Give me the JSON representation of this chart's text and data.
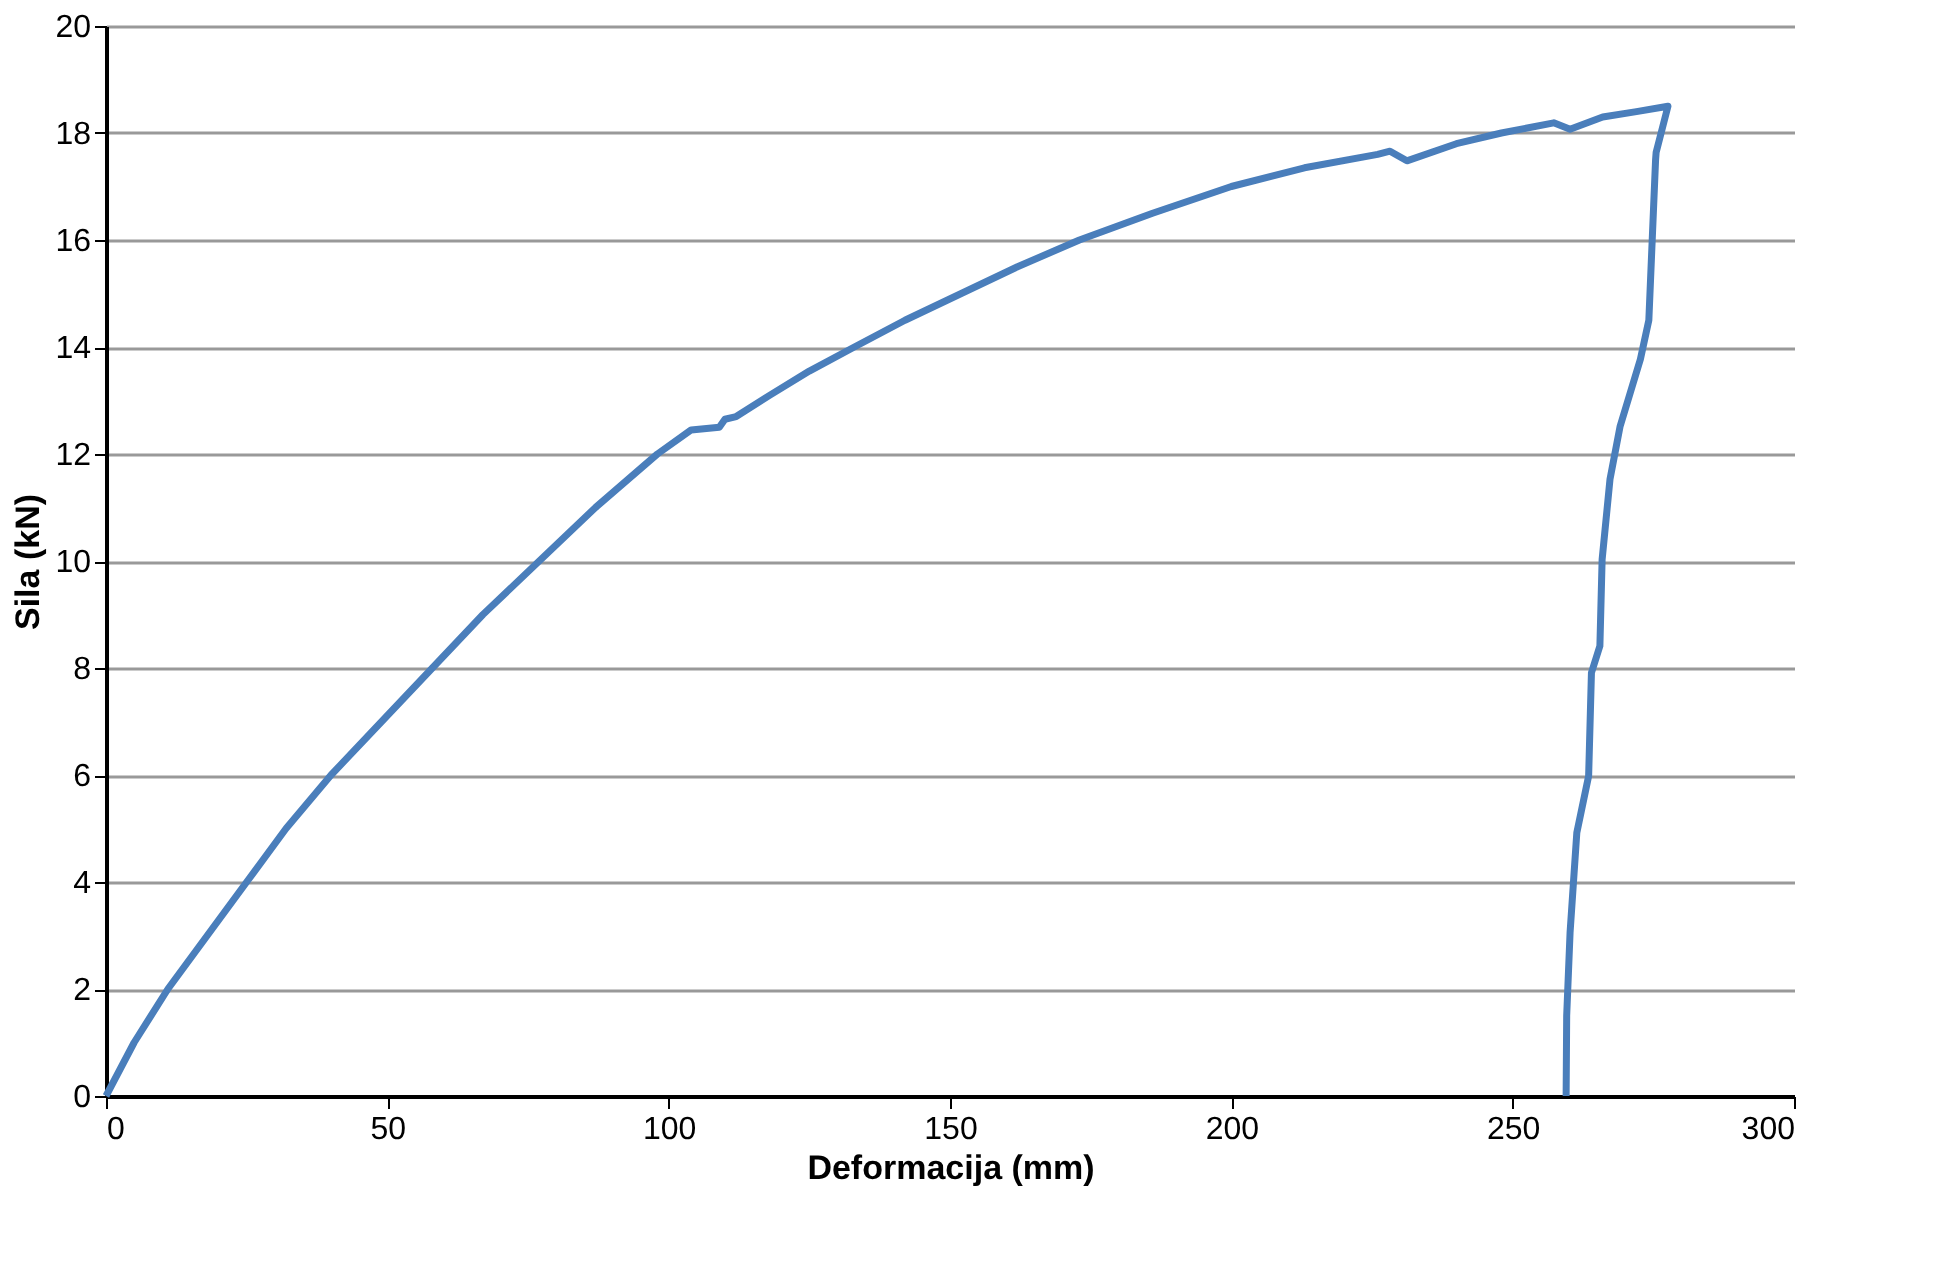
{
  "chart_data": {
    "type": "line",
    "xlabel": "Deformacija (mm)",
    "ylabel": "Sila (kN)",
    "xlim": [
      0,
      300
    ],
    "xticks": [
      0,
      50,
      100,
      150,
      200,
      250,
      300
    ],
    "ylim": [
      0,
      20
    ],
    "yticks": [
      0,
      2,
      4,
      6,
      8,
      10,
      12,
      14,
      16,
      18,
      20
    ],
    "grid": "y",
    "marker": "none",
    "line_style": "solid",
    "series": [
      {
        "color": "#4a7ebb",
        "x": [
          0,
          5,
          11,
          18,
          25,
          32,
          40,
          49,
          58,
          67,
          77,
          87,
          98,
          104,
          109,
          110,
          112,
          118,
          125,
          133,
          142,
          152,
          162,
          173,
          186,
          200,
          213,
          226,
          228.2,
          231.2,
          240,
          248,
          257.3,
          260.2,
          266,
          272,
          277.6,
          275.5,
          275.4,
          274.2,
          272.7,
          269.1,
          267.3,
          265.9,
          265.5,
          264,
          263.5,
          261.4,
          260.2,
          259.6,
          259.5
        ],
        "values": [
          0,
          1,
          2,
          3,
          4,
          5,
          6,
          7,
          8,
          9,
          10,
          11,
          12,
          12.45,
          12.5,
          12.65,
          12.7,
          13.1,
          13.55,
          14,
          14.5,
          15,
          15.5,
          16,
          16.5,
          17,
          17.35,
          17.6,
          17.66,
          17.48,
          17.8,
          18,
          18.19,
          18.07,
          18.3,
          18.4,
          18.5,
          17.64,
          17.5,
          14.5,
          13.77,
          12.52,
          11.53,
          10.03,
          8.41,
          7.91,
          5.98,
          4.92,
          3.05,
          1.5,
          0
        ]
      }
    ]
  }
}
